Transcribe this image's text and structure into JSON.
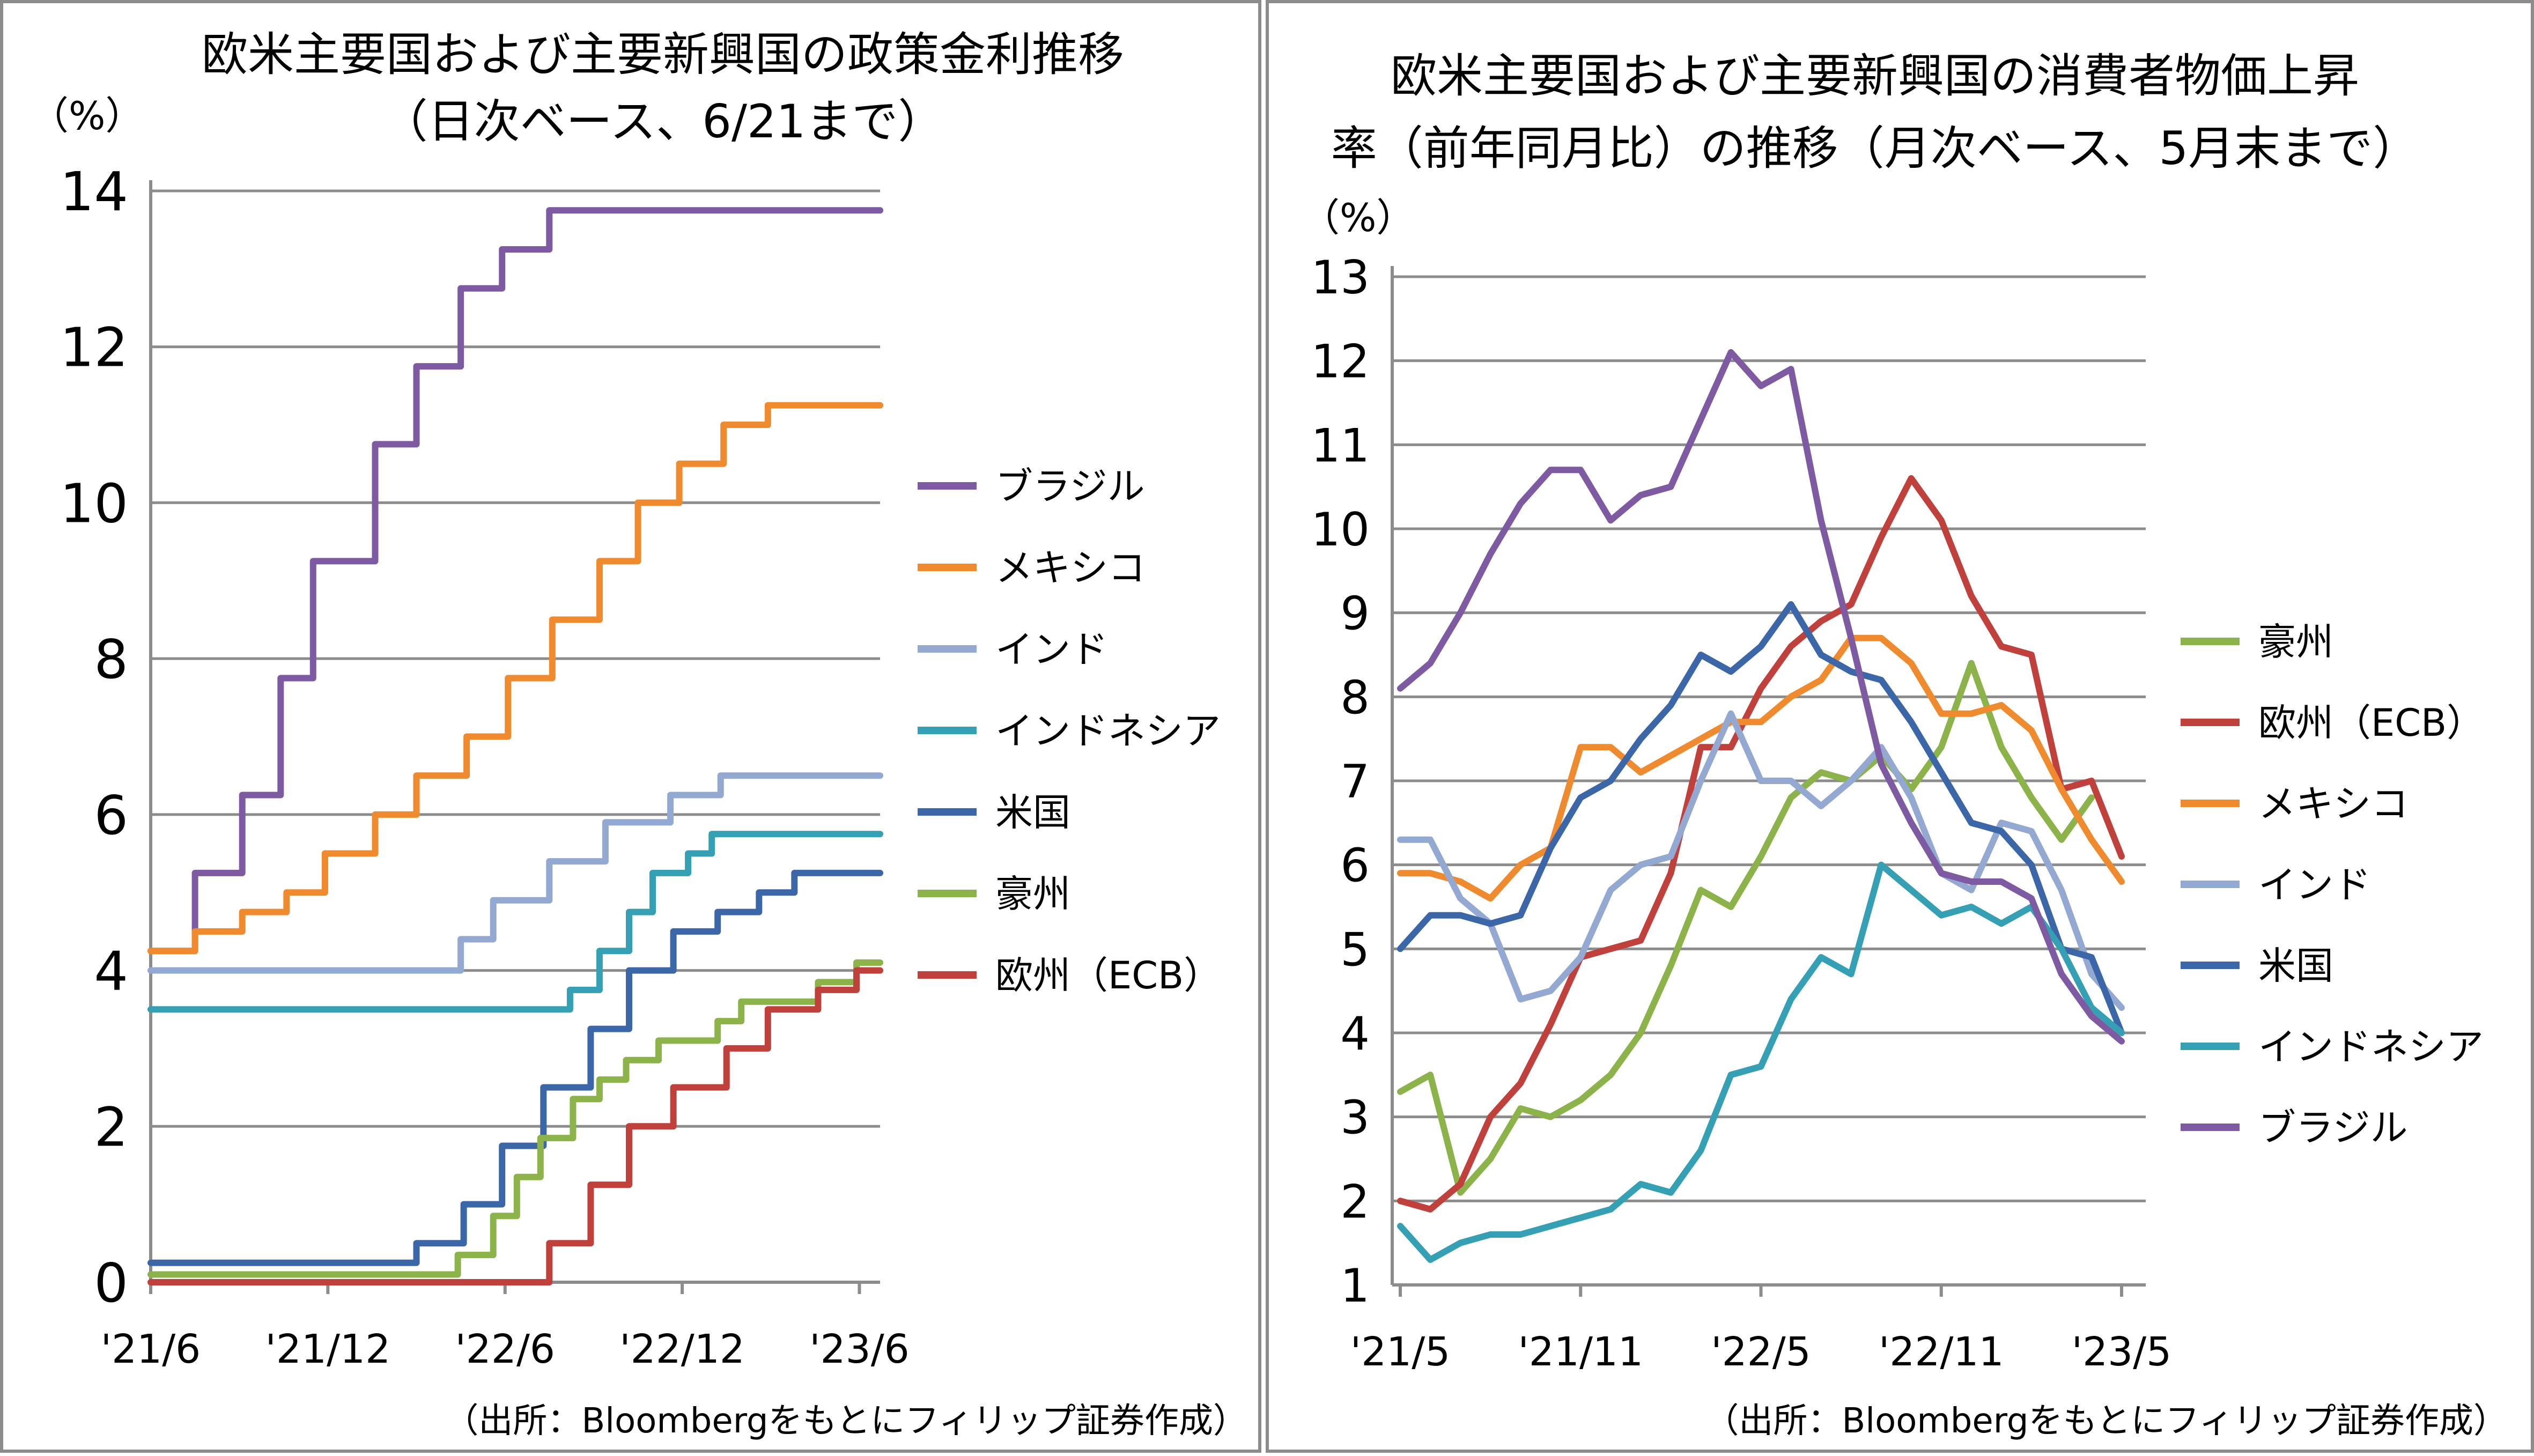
{
  "charts": [
    {
      "title_lines": [
        "欧米主要国および主要新興国の政策金利推移",
        "（日次ベース、6/21まで）"
      ],
      "unit": "（%）",
      "source": "（出所：Bloombergをもとにフィリップ証券作成）"
    },
    {
      "title_lines": [
        "欧米主要国および主要新興国の消費者物価上昇",
        "率（前年同月比）の推移（月次ベース、5月末まで）"
      ],
      "unit": "（%）",
      "source": "（出所：Bloombergをもとにフィリップ証券作成）"
    }
  ],
  "chart_data": [
    {
      "type": "line",
      "title": "欧米主要国および主要新興国の政策金利推移（日次ベース、6/21まで）",
      "ylabel": "（%）",
      "ylim": [
        0,
        14
      ],
      "yticks": [
        0,
        2,
        4,
        6,
        8,
        10,
        12,
        14
      ],
      "xlim": [
        0,
        24.7
      ],
      "xticks": [
        "'21/6",
        "'21/12",
        "'22/6",
        "'22/12",
        "'23/6"
      ],
      "xtick_pos": [
        0,
        6,
        12,
        18,
        24
      ],
      "x_note": "x = months since 2021-06-01",
      "legend_position": "right",
      "grid": "horizontal",
      "series": [
        {
          "name": "ブラジル",
          "color": "#7e5aa2",
          "step": [
            [
              0,
              4.25
            ],
            [
              1.5,
              5.25
            ],
            [
              3.1,
              6.25
            ],
            [
              4.4,
              7.75
            ],
            [
              5.5,
              9.25
            ],
            [
              7.6,
              10.75
            ],
            [
              9.0,
              11.75
            ],
            [
              10.5,
              12.75
            ],
            [
              11.9,
              13.25
            ],
            [
              13.5,
              13.75
            ],
            [
              24.7,
              13.75
            ]
          ]
        },
        {
          "name": "メキシコ",
          "color": "#f08a2e",
          "step": [
            [
              0,
              4.25
            ],
            [
              1.5,
              4.5
            ],
            [
              3.1,
              4.75
            ],
            [
              4.6,
              5.0
            ],
            [
              5.9,
              5.5
            ],
            [
              7.6,
              6.0
            ],
            [
              9.0,
              6.5
            ],
            [
              10.7,
              7.0
            ],
            [
              12.1,
              7.75
            ],
            [
              13.6,
              8.5
            ],
            [
              15.2,
              9.25
            ],
            [
              16.5,
              10.0
            ],
            [
              17.9,
              10.5
            ],
            [
              19.4,
              11.0
            ],
            [
              20.9,
              11.25
            ],
            [
              24.7,
              11.25
            ]
          ]
        },
        {
          "name": "インド",
          "color": "#93a9d2",
          "step": [
            [
              0,
              4.0
            ],
            [
              10.5,
              4.4
            ],
            [
              11.6,
              4.9
            ],
            [
              13.5,
              5.4
            ],
            [
              15.4,
              5.9
            ],
            [
              17.6,
              6.25
            ],
            [
              19.3,
              6.5
            ],
            [
              24.7,
              6.5
            ]
          ]
        },
        {
          "name": "インドネシア",
          "color": "#35a0b3",
          "step": [
            [
              0,
              3.5
            ],
            [
              14.2,
              3.75
            ],
            [
              15.2,
              4.25
            ],
            [
              16.2,
              4.75
            ],
            [
              17.0,
              5.25
            ],
            [
              18.2,
              5.5
            ],
            [
              19.0,
              5.75
            ],
            [
              24.7,
              5.75
            ]
          ]
        },
        {
          "name": "米国",
          "color": "#3b67a8",
          "step": [
            [
              0,
              0.25
            ],
            [
              9.0,
              0.5
            ],
            [
              10.6,
              1.0
            ],
            [
              11.9,
              1.75
            ],
            [
              13.3,
              2.5
            ],
            [
              14.9,
              3.25
            ],
            [
              16.2,
              4.0
            ],
            [
              17.7,
              4.5
            ],
            [
              19.2,
              4.75
            ],
            [
              20.6,
              5.0
            ],
            [
              21.8,
              5.25
            ],
            [
              24.7,
              5.25
            ]
          ]
        },
        {
          "name": "豪州",
          "color": "#8cb24a",
          "step": [
            [
              0,
              0.1
            ],
            [
              10.4,
              0.35
            ],
            [
              11.6,
              0.85
            ],
            [
              12.4,
              1.35
            ],
            [
              13.2,
              1.85
            ],
            [
              14.3,
              2.35
            ],
            [
              15.2,
              2.6
            ],
            [
              16.1,
              2.85
            ],
            [
              17.2,
              3.1
            ],
            [
              19.2,
              3.35
            ],
            [
              20.0,
              3.6
            ],
            [
              22.6,
              3.85
            ],
            [
              23.9,
              4.1
            ],
            [
              24.7,
              4.1
            ]
          ]
        },
        {
          "name": "欧州（ECB）",
          "color": "#c0403c",
          "step": [
            [
              0,
              0.0
            ],
            [
              13.5,
              0.5
            ],
            [
              14.9,
              1.25
            ],
            [
              16.2,
              2.0
            ],
            [
              17.7,
              2.5
            ],
            [
              19.5,
              3.0
            ],
            [
              20.9,
              3.5
            ],
            [
              22.6,
              3.75
            ],
            [
              23.9,
              4.0
            ],
            [
              24.7,
              4.0
            ]
          ]
        }
      ]
    },
    {
      "type": "line",
      "title": "欧米主要国および主要新興国の消費者物価上昇率（前年同月比）の推移（月次ベース、5月末まで）",
      "ylabel": "（%）",
      "ylim": [
        1,
        13
      ],
      "yticks": [
        1,
        2,
        3,
        4,
        5,
        6,
        7,
        8,
        9,
        10,
        11,
        12,
        13
      ],
      "x": [
        "2021-05",
        "2021-06",
        "2021-07",
        "2021-08",
        "2021-09",
        "2021-10",
        "2021-11",
        "2021-12",
        "2022-01",
        "2022-02",
        "2022-03",
        "2022-04",
        "2022-05",
        "2022-06",
        "2022-07",
        "2022-08",
        "2022-09",
        "2022-10",
        "2022-11",
        "2022-12",
        "2023-01",
        "2023-02",
        "2023-03",
        "2023-04",
        "2023-05"
      ],
      "xticks": [
        "'21/5",
        "'21/11",
        "'22/5",
        "'22/11",
        "'23/5"
      ],
      "xtick_index": [
        0,
        6,
        12,
        18,
        24
      ],
      "legend_position": "right",
      "grid": "horizontal",
      "series": [
        {
          "name": "豪州",
          "color": "#8cb24a",
          "values": [
            3.3,
            3.5,
            2.1,
            2.5,
            3.1,
            3.0,
            3.2,
            3.5,
            4.0,
            4.8,
            5.7,
            5.5,
            6.1,
            6.8,
            7.1,
            7.0,
            7.3,
            6.9,
            7.4,
            8.4,
            7.4,
            6.8,
            6.3,
            6.8,
            null
          ]
        },
        {
          "name": "欧州（ECB）",
          "color": "#c0403c",
          "values": [
            2.0,
            1.9,
            2.2,
            3.0,
            3.4,
            4.1,
            4.9,
            5.0,
            5.1,
            5.9,
            7.4,
            7.4,
            8.1,
            8.6,
            8.9,
            9.1,
            9.9,
            10.6,
            10.1,
            9.2,
            8.6,
            8.5,
            6.9,
            7.0,
            6.1
          ]
        },
        {
          "name": "メキシコ",
          "color": "#f08a2e",
          "values": [
            5.9,
            5.9,
            5.8,
            5.6,
            6.0,
            6.2,
            7.4,
            7.4,
            7.1,
            7.3,
            7.5,
            7.7,
            7.7,
            8.0,
            8.2,
            8.7,
            8.7,
            8.4,
            7.8,
            7.8,
            7.9,
            7.6,
            6.9,
            6.3,
            5.8
          ]
        },
        {
          "name": "インド",
          "color": "#93a9d2",
          "values": [
            6.3,
            6.3,
            5.6,
            5.3,
            4.4,
            4.5,
            4.9,
            5.7,
            6.0,
            6.1,
            7.0,
            7.8,
            7.0,
            7.0,
            6.7,
            7.0,
            7.4,
            6.8,
            5.9,
            5.7,
            6.5,
            6.4,
            5.7,
            4.7,
            4.3
          ]
        },
        {
          "name": "米国",
          "color": "#3b67a8",
          "values": [
            5.0,
            5.4,
            5.4,
            5.3,
            5.4,
            6.2,
            6.8,
            7.0,
            7.5,
            7.9,
            8.5,
            8.3,
            8.6,
            9.1,
            8.5,
            8.3,
            8.2,
            7.7,
            7.1,
            6.5,
            6.4,
            6.0,
            5.0,
            4.9,
            4.0
          ]
        },
        {
          "name": "インドネシア",
          "color": "#35a0b3",
          "values": [
            1.7,
            1.3,
            1.5,
            1.6,
            1.6,
            1.7,
            1.8,
            1.9,
            2.2,
            2.1,
            2.6,
            3.5,
            3.6,
            4.4,
            4.9,
            4.7,
            6.0,
            5.7,
            5.4,
            5.5,
            5.3,
            5.5,
            5.0,
            4.3,
            4.0
          ]
        },
        {
          "name": "ブラジル",
          "color": "#7e5aa2",
          "values": [
            8.1,
            8.4,
            9.0,
            9.7,
            10.3,
            10.7,
            10.7,
            10.1,
            10.4,
            10.5,
            11.3,
            12.1,
            11.7,
            11.9,
            10.1,
            8.7,
            7.2,
            6.5,
            5.9,
            5.8,
            5.8,
            5.6,
            4.7,
            4.2,
            3.9
          ]
        }
      ]
    }
  ]
}
